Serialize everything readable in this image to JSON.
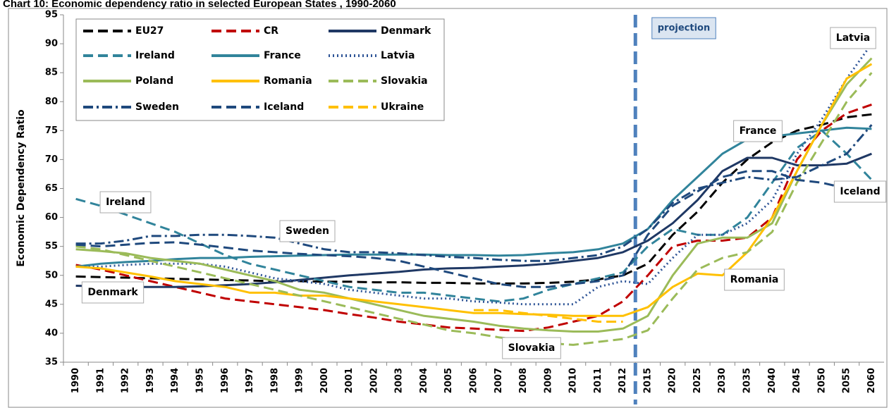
{
  "chart_data": {
    "type": "line",
    "title": "Chart 10: Economic dependency ratio in selected European States , 1990-2060",
    "y_label": "Economic Dependency Ratio",
    "categories": [
      "1990",
      "1991",
      "1992",
      "1993",
      "1994",
      "1995",
      "1996",
      "1997",
      "1998",
      "1999",
      "2000",
      "2001",
      "2002",
      "2003",
      "2004",
      "2005",
      "2006",
      "2007",
      "2008",
      "2009",
      "2010",
      "2011",
      "2012",
      "2015",
      "2020",
      "2025",
      "2030",
      "2035",
      "2040",
      "2045",
      "2050",
      "2055",
      "2060"
    ],
    "ylim": [
      35,
      95
    ],
    "yticks": [
      35,
      40,
      45,
      50,
      55,
      60,
      65,
      70,
      75,
      80,
      85,
      90,
      95
    ],
    "grid": false,
    "annotations": [
      "projection",
      "Ireland",
      "Denmark",
      "Sweden",
      "Slovakia",
      "France",
      "Romania",
      "Latvia",
      "Iceland"
    ],
    "series": [
      {
        "name": "EU27",
        "color": "#000000",
        "dash": "dash",
        "values": [
          49.8,
          49.7,
          49.6,
          49.5,
          49.4,
          49.3,
          49.2,
          49.1,
          49.0,
          49.0,
          48.9,
          48.9,
          48.8,
          48.8,
          48.7,
          48.7,
          48.6,
          48.6,
          48.6,
          48.7,
          48.9,
          49.3,
          50.0,
          52,
          57,
          61,
          66,
          70,
          73,
          75,
          76,
          77.3,
          77.8
        ]
      },
      {
        "name": "CR",
        "color": "#c00000",
        "dash": "dash",
        "values": [
          51.8,
          51,
          50,
          49,
          48,
          47,
          46,
          45.5,
          45,
          44.5,
          44,
          43.3,
          42.7,
          42,
          41.5,
          41,
          40.8,
          40.6,
          40.4,
          41,
          42,
          43,
          45.5,
          50,
          55,
          56,
          56,
          56.5,
          60,
          70,
          75,
          78,
          79.5
        ]
      },
      {
        "name": "Denmark",
        "color": "#1f3864",
        "dash": "solid",
        "values": [
          48.2,
          48.1,
          48,
          48,
          48,
          48.1,
          48.3,
          48.5,
          48.8,
          49.2,
          49.6,
          50,
          50.3,
          50.6,
          51,
          51.2,
          51.3,
          51.5,
          51.7,
          52,
          52.5,
          53,
          54,
          56,
          59,
          63,
          68,
          70.3,
          70.3,
          69,
          69,
          69.3,
          71
        ]
      },
      {
        "name": "Ireland",
        "color": "#31849b",
        "dash": "dash",
        "values": [
          63.2,
          62,
          60.5,
          59,
          57.5,
          55.5,
          53.5,
          52,
          51,
          50,
          49,
          48,
          47.5,
          47,
          47,
          46.5,
          46,
          45.5,
          46,
          47.5,
          48.5,
          49.5,
          50.5,
          55,
          58,
          57,
          57,
          60,
          66,
          72,
          75,
          71,
          66.5
        ]
      },
      {
        "name": "France",
        "color": "#31849b",
        "dash": "solid",
        "values": [
          51.5,
          52,
          52.3,
          52.5,
          52.8,
          53,
          53,
          53.2,
          53.3,
          53.4,
          53.5,
          53.6,
          53.6,
          53.6,
          53.6,
          53.5,
          53.5,
          53.4,
          53.5,
          53.8,
          54,
          54.5,
          55.5,
          58,
          63,
          67,
          71,
          73.5,
          74,
          74.5,
          75,
          75.5,
          75.3
        ]
      },
      {
        "name": "Latvia",
        "color": "#2f5597",
        "dash": "dot",
        "values": [
          51.5,
          51.5,
          51.8,
          52,
          52,
          52,
          51.5,
          50.5,
          49.5,
          49,
          48.5,
          47.5,
          47,
          46.5,
          46,
          46,
          45.5,
          45.3,
          45,
          45,
          45,
          48,
          49,
          48.5,
          53,
          57,
          57,
          59,
          63,
          71,
          77,
          84,
          90
        ]
      },
      {
        "name": "Poland",
        "color": "#9bbb59",
        "dash": "solid",
        "values": [
          54.5,
          54.2,
          53.8,
          53,
          52.5,
          52,
          51,
          50,
          49,
          47.5,
          47,
          46,
          45,
          44,
          43,
          42.5,
          42,
          41.3,
          40.8,
          40.5,
          40.3,
          40.3,
          40.8,
          43,
          50,
          55.5,
          56.5,
          56.5,
          59,
          68,
          76,
          83,
          87.5
        ]
      },
      {
        "name": "Romania",
        "color": "#ffc000",
        "dash": "solid",
        "values": [
          51.5,
          51.2,
          50.5,
          49.8,
          49,
          48.5,
          48,
          47,
          47,
          46.5,
          46.5,
          46,
          45.5,
          45,
          44.5,
          44,
          43.5,
          43.5,
          43.3,
          43.2,
          43,
          43,
          43,
          44.5,
          48,
          50.3,
          50,
          54,
          60,
          68,
          76,
          84,
          86.5
        ]
      },
      {
        "name": "Slovakia",
        "color": "#9bbb59",
        "dash": "dash",
        "values": [
          55,
          54.5,
          53.5,
          52.5,
          51.5,
          50.5,
          49.5,
          48.5,
          47.5,
          46.5,
          45.5,
          44.5,
          43.5,
          42.5,
          41.5,
          40.5,
          40,
          39.3,
          38.8,
          38.3,
          38,
          38.5,
          39,
          40.5,
          46,
          51,
          53,
          54,
          57.5,
          66,
          73,
          80,
          85
        ]
      },
      {
        "name": "Sweden",
        "color": "#1f497d",
        "dash": "dashdot",
        "values": [
          55.5,
          55.5,
          56,
          56.8,
          56.8,
          57,
          57,
          56.8,
          56.5,
          55.5,
          54.5,
          54,
          54,
          53.8,
          53.5,
          53.2,
          53,
          52.7,
          52.5,
          52.5,
          53,
          53.5,
          55,
          58,
          62.5,
          65,
          66,
          67,
          66.5,
          67,
          69,
          71,
          76
        ]
      },
      {
        "name": "Iceland",
        "color": "#1f497d",
        "dash": "dash",
        "values": [
          55.3,
          55,
          55.3,
          55.6,
          55.7,
          55.3,
          54.8,
          54.3,
          54,
          53.7,
          53.5,
          53.3,
          53,
          52.5,
          51.5,
          50.5,
          49.5,
          48.5,
          48,
          48,
          48.5,
          49,
          50,
          57,
          62,
          64.5,
          67,
          68,
          68,
          66.5,
          66,
          65,
          64
        ]
      },
      {
        "name": "Ukraine",
        "color": "#ffc000",
        "dash": "dash",
        "values": [
          null,
          null,
          null,
          null,
          null,
          null,
          null,
          null,
          null,
          null,
          null,
          null,
          null,
          null,
          null,
          null,
          44,
          44,
          43.5,
          43,
          42.5,
          42,
          42,
          null,
          null,
          null,
          null,
          null,
          null,
          null,
          null,
          null,
          null
        ]
      }
    ]
  }
}
